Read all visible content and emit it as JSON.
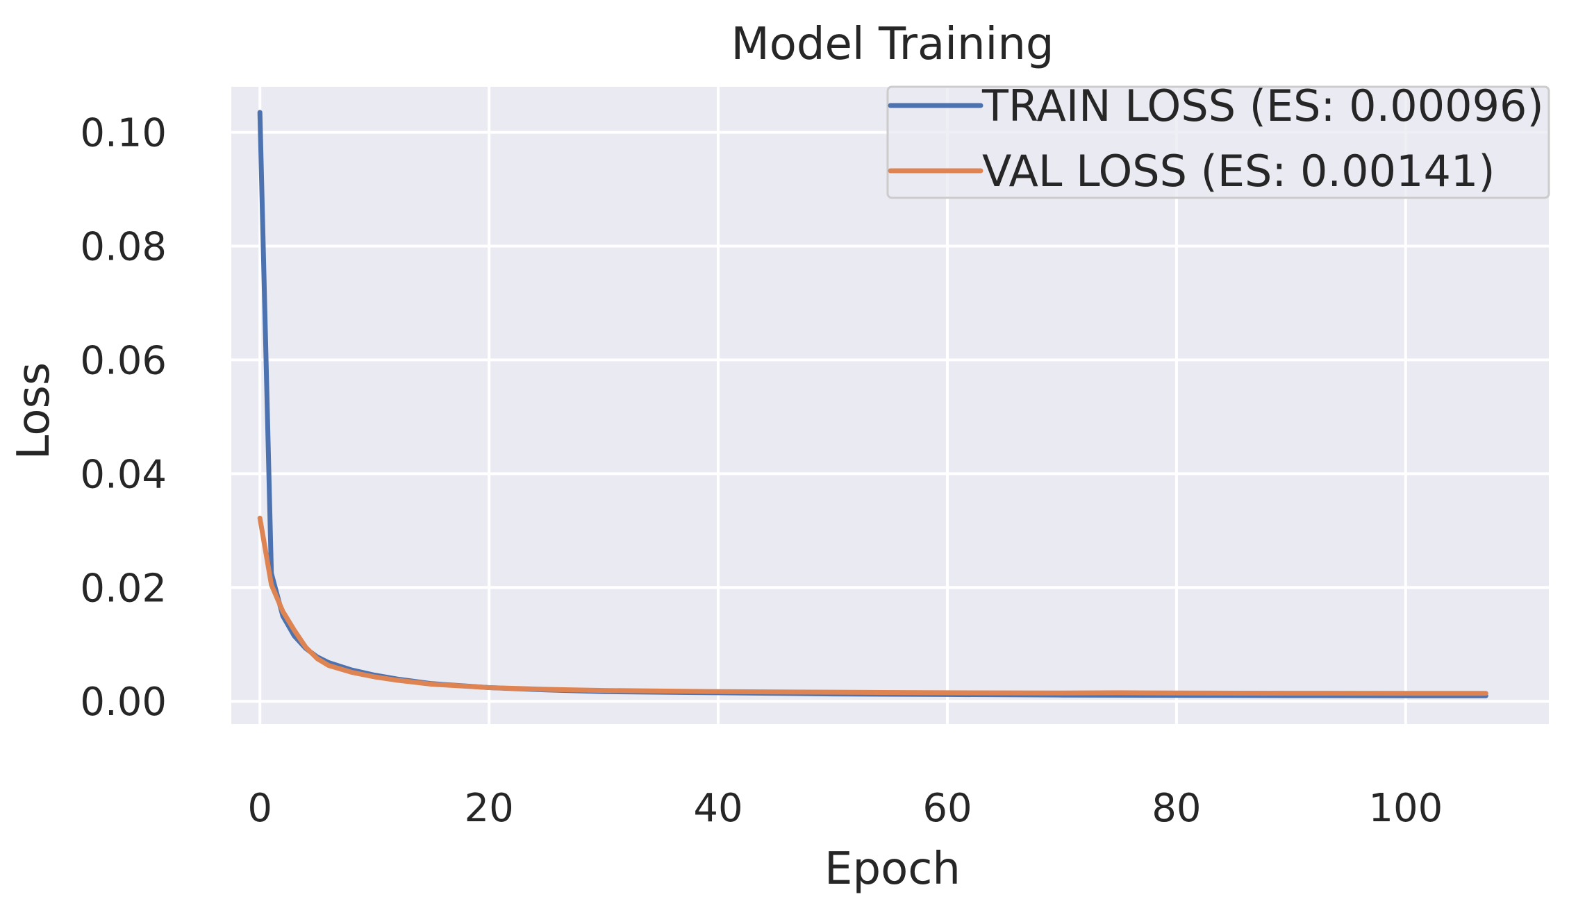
{
  "chart_data": {
    "type": "line",
    "title": "Model Training",
    "xlabel": "Epoch",
    "ylabel": "Loss",
    "xlim": [
      -2.5,
      112.5
    ],
    "ylim": [
      -0.004,
      0.108
    ],
    "xticks": [
      0,
      20,
      40,
      60,
      80,
      100
    ],
    "yticks": [
      0.0,
      0.02,
      0.04,
      0.06,
      0.08,
      0.1
    ],
    "xtick_labels": [
      "0",
      "20",
      "40",
      "60",
      "80",
      "100"
    ],
    "ytick_labels": [
      "0.00",
      "0.02",
      "0.04",
      "0.06",
      "0.08",
      "0.10"
    ],
    "grid": true,
    "legend_position": "upper-right",
    "series": [
      {
        "name": "TRAIN LOSS (ES: 0.00096)",
        "color": "#4c72b0",
        "x": [
          0,
          1,
          2,
          3,
          4,
          5,
          6,
          8,
          10,
          12,
          15,
          20,
          25,
          30,
          40,
          50,
          60,
          70,
          80,
          90,
          100,
          107
        ],
        "values": [
          0.1035,
          0.0225,
          0.015,
          0.0115,
          0.0093,
          0.0078,
          0.0068,
          0.0055,
          0.0046,
          0.0039,
          0.0031,
          0.0024,
          0.002,
          0.0017,
          0.0015,
          0.0013,
          0.0012,
          0.0011,
          0.00105,
          0.001,
          0.00098,
          0.00096
        ]
      },
      {
        "name": "VAL LOSS (ES: 0.00141)",
        "color": "#dd8452",
        "x": [
          0,
          1,
          2,
          3,
          4,
          5,
          6,
          8,
          10,
          12,
          15,
          20,
          25,
          30,
          40,
          50,
          60,
          70,
          75,
          80,
          90,
          100,
          107
        ],
        "values": [
          0.0322,
          0.0205,
          0.0158,
          0.0125,
          0.0095,
          0.0075,
          0.0063,
          0.0051,
          0.0043,
          0.0037,
          0.003,
          0.0024,
          0.0021,
          0.0019,
          0.0017,
          0.0016,
          0.0015,
          0.00145,
          0.0015,
          0.00145,
          0.00142,
          0.00141,
          0.00141
        ]
      }
    ]
  }
}
